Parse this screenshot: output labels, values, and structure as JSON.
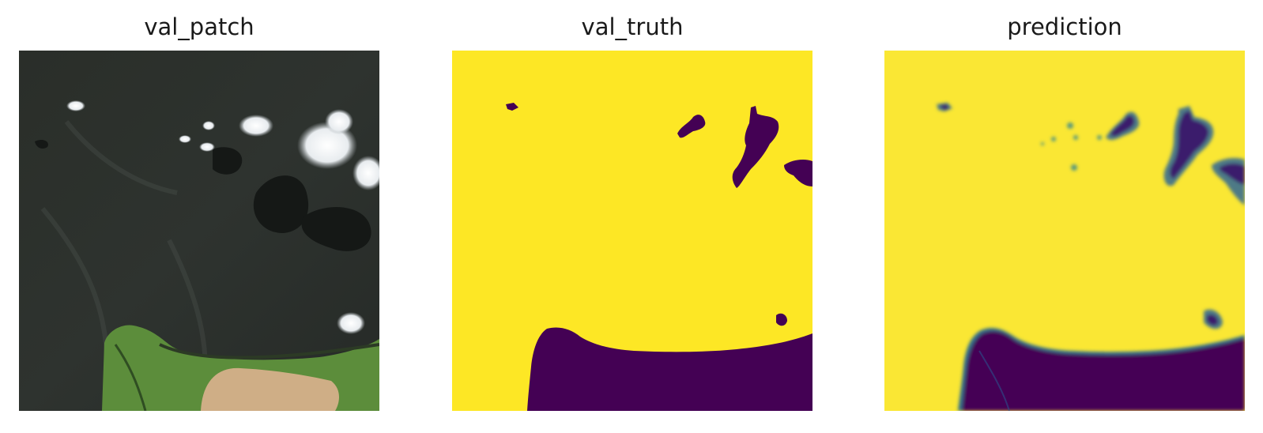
{
  "panels": [
    {
      "title": "val_patch"
    },
    {
      "title": "val_truth"
    },
    {
      "title": "prediction"
    }
  ],
  "colors": {
    "mask_foreground": "#fde725",
    "mask_background": "#440154",
    "mask_edge": "#21918c",
    "satellite_sea": "#2b302c",
    "satellite_land": "#5a8f3a",
    "satellite_soil": "#d2b088",
    "satellite_cloud": "#f4f6f8"
  }
}
